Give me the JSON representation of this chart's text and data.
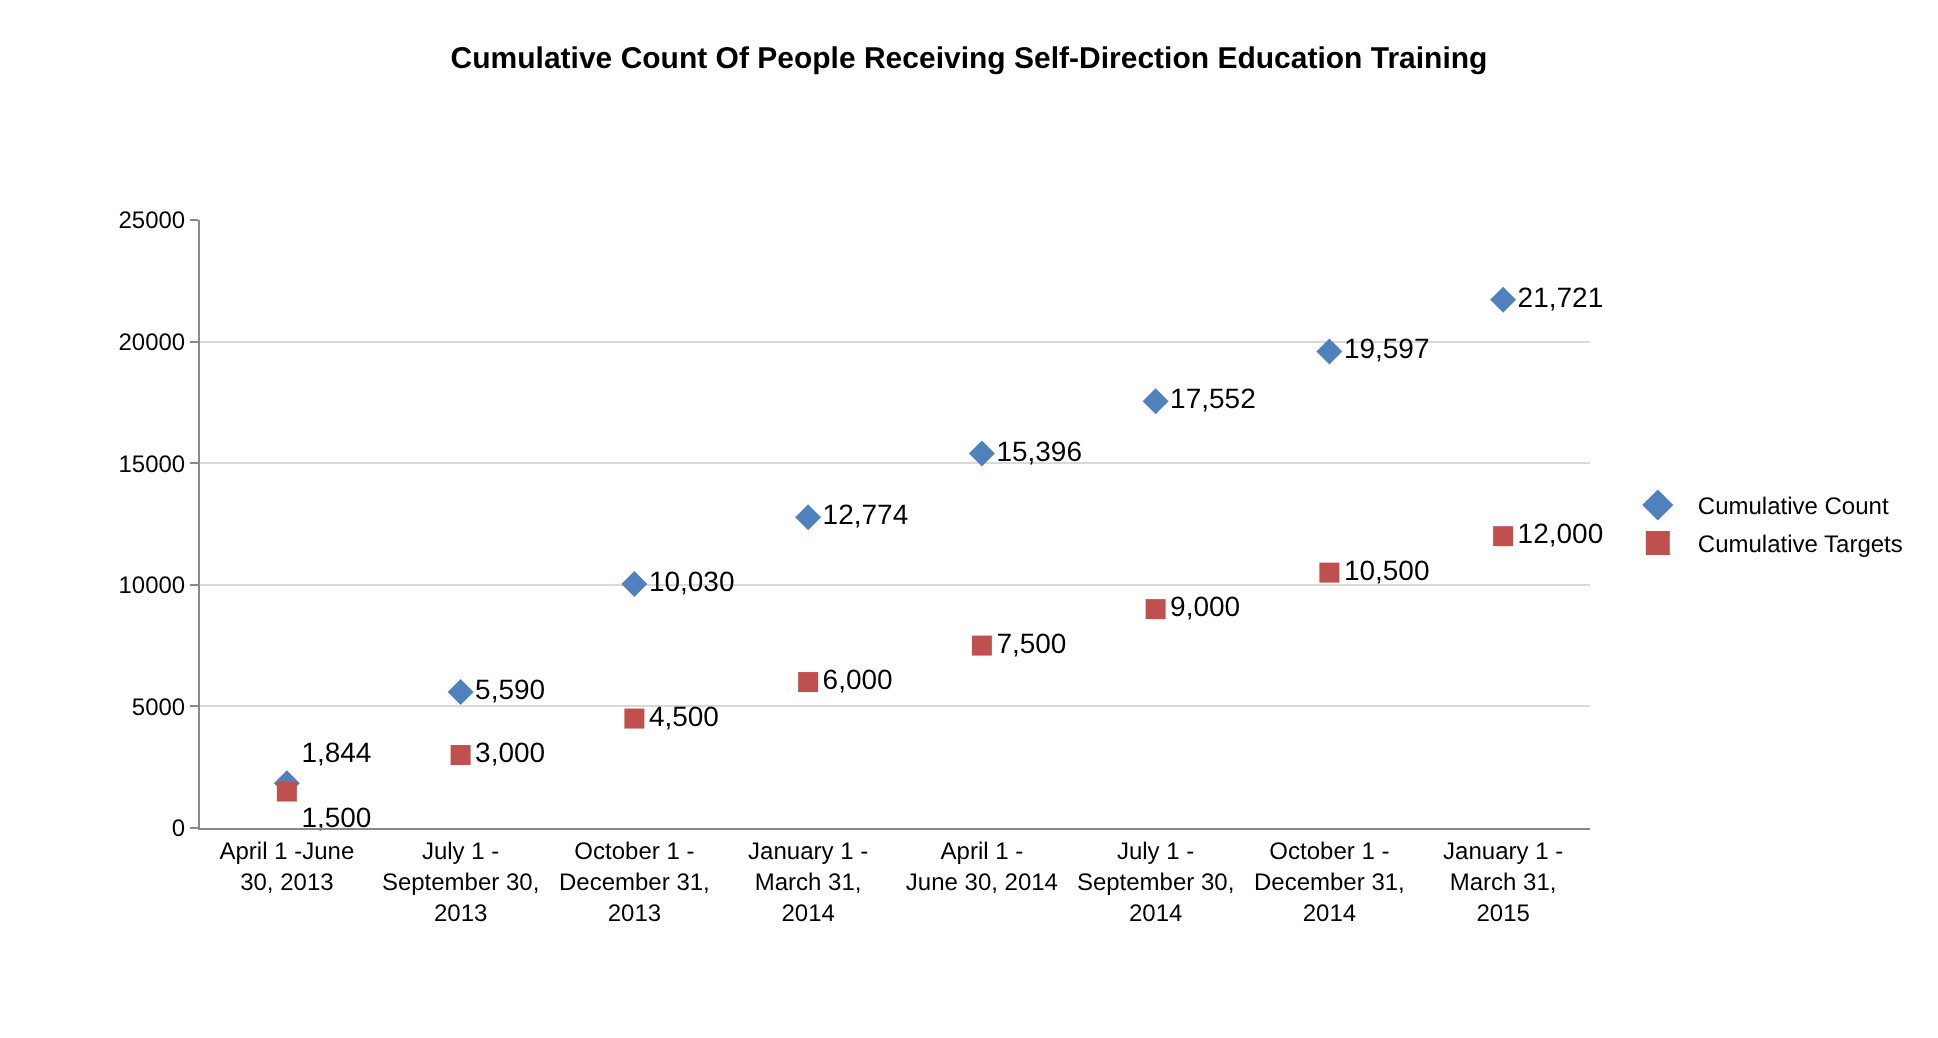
{
  "chart_data": {
    "type": "scatter",
    "title": "Cumulative Count Of People Receiving Self-Direction Education Training",
    "categories": [
      "April 1 -June 30, 2013",
      "July 1 - September 30, 2013",
      "October 1 - December 31, 2013",
      "January 1 - March 31, 2014",
      "April 1 - June 30, 2014",
      "July 1 - September 30, 2014",
      "October 1 - December 31, 2014",
      "January 1 - March 31, 2015"
    ],
    "series": [
      {
        "name": "Cumulative Count",
        "color": "#4f81bd",
        "marker": "diamond",
        "values": [
          1844,
          5590,
          10030,
          12774,
          15396,
          17552,
          19597,
          21721
        ],
        "value_labels": [
          "1,844",
          "5,590",
          "10,030",
          "12,774",
          "15,396",
          "17,552",
          "19,597",
          "21,721"
        ]
      },
      {
        "name": "Cumulative Targets",
        "color": "#c0504d",
        "marker": "square",
        "values": [
          1500,
          3000,
          4500,
          6000,
          7500,
          9000,
          10500,
          12000
        ],
        "value_labels": [
          "1,500",
          "3,000",
          "4,500",
          "6,000",
          "7,500",
          "9,000",
          "10,500",
          "12,000"
        ]
      }
    ],
    "ylim": [
      0,
      25000
    ],
    "yticks": [
      0,
      5000,
      10000,
      15000,
      20000,
      25000
    ],
    "grid": "y",
    "legend": "right"
  }
}
